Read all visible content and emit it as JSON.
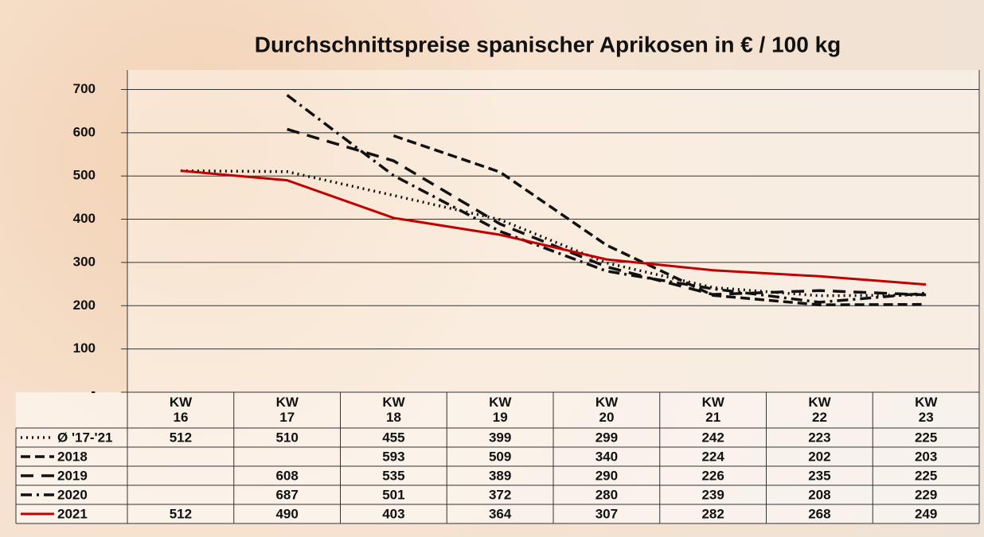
{
  "chart_data": {
    "type": "line",
    "title": "Durchschnittspreise spanischer Aprikosen in € / 100 kg",
    "categories": [
      "KW\n16",
      "KW\n17",
      "KW\n18",
      "KW\n19",
      "KW\n20",
      "KW\n21",
      "KW\n22",
      "KW\n23"
    ],
    "ylim": [
      0,
      745
    ],
    "yticks": [
      {
        "value": 0,
        "label": "-"
      },
      100,
      200,
      300,
      400,
      500,
      600,
      700
    ],
    "grid": true,
    "series": [
      {
        "name": "Ø '17-'21",
        "color": "#111111",
        "style": "dotted",
        "values": [
          512,
          510,
          455,
          399,
          299,
          242,
          223,
          225
        ]
      },
      {
        "name": "2018",
        "color": "#111111",
        "style": "dashed",
        "values": [
          null,
          null,
          593,
          509,
          340,
          224,
          202,
          203
        ]
      },
      {
        "name": "2019",
        "color": "#111111",
        "style": "long-dash",
        "values": [
          null,
          608,
          535,
          389,
          290,
          226,
          235,
          225
        ]
      },
      {
        "name": "2020",
        "color": "#111111",
        "style": "dash-dot",
        "values": [
          null,
          687,
          501,
          372,
          280,
          239,
          208,
          229
        ]
      },
      {
        "name": "2021",
        "color": "#c00000",
        "style": "solid",
        "values": [
          512,
          490,
          403,
          364,
          307,
          282,
          268,
          249
        ]
      }
    ]
  }
}
